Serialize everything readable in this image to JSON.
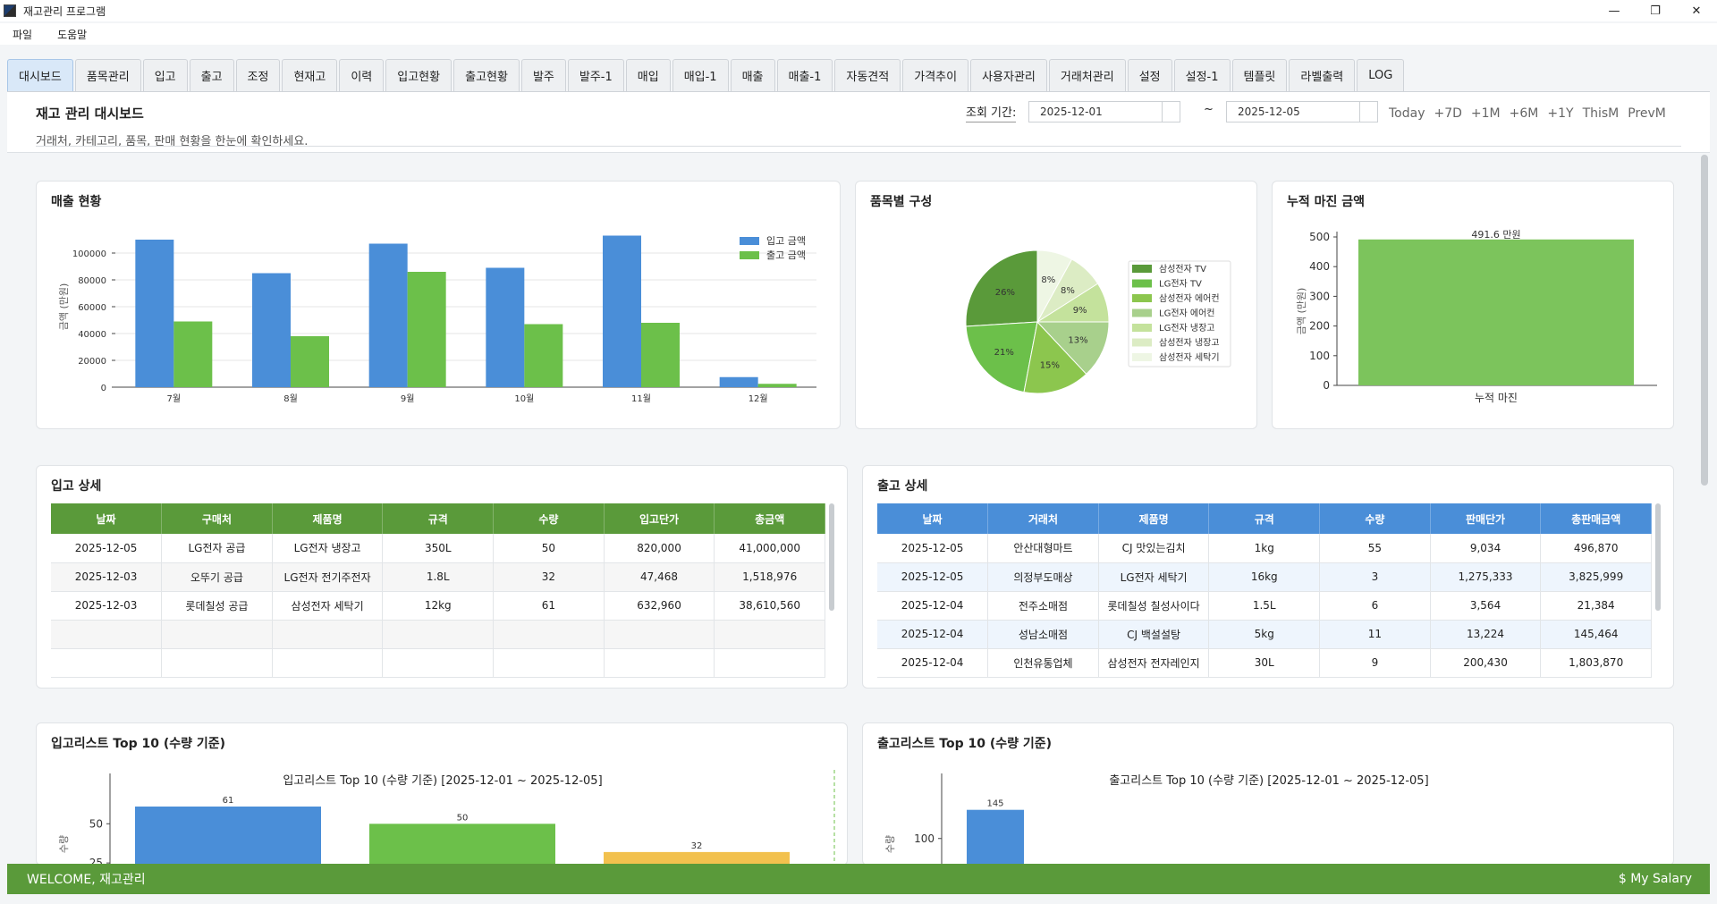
{
  "window": {
    "title": "재고관리 프로그램"
  },
  "menu": [
    "파일",
    "도움말"
  ],
  "tabs": [
    "대시보드",
    "품목관리",
    "입고",
    "출고",
    "조정",
    "현재고",
    "이력",
    "입고현황",
    "출고현황",
    "발주",
    "발주-1",
    "매입",
    "매입-1",
    "매출",
    "매출-1",
    "자동견적",
    "가격추이",
    "사용자관리",
    "거래처관리",
    "설정",
    "설정-1",
    "템플릿",
    "라벨출력",
    "LOG"
  ],
  "header": {
    "title": "재고 관리 대시보드",
    "subtitle": "거래처, 카테고리, 품목, 판매 현황을 한눈에 확인하세요.",
    "period_label": "조회 기간:",
    "date_from": "2025-12-01",
    "date_to": "2025-12-05",
    "tilde": "~",
    "quick": [
      "Today",
      "+7D",
      "+1M",
      "+6M",
      "+1Y",
      "ThisM",
      "PrevM"
    ]
  },
  "sales_card": {
    "title": "매출 현황",
    "chart_data": {
      "type": "bar",
      "categories": [
        "7월",
        "8월",
        "9월",
        "10월",
        "11월",
        "12월"
      ],
      "series": [
        {
          "name": "입고 금액",
          "values": [
            110000,
            85000,
            107000,
            89000,
            113000,
            7500
          ],
          "color": "#4a8ed8"
        },
        {
          "name": "출고 금액",
          "values": [
            49000,
            38000,
            86000,
            47000,
            48000,
            2500
          ],
          "color": "#6cc04a"
        }
      ],
      "ylabel": "금액 (만원)",
      "yticks": [
        0,
        20000,
        40000,
        60000,
        80000,
        100000
      ],
      "ylim": [
        0,
        120000
      ],
      "legend": "top-right",
      "grid": true
    }
  },
  "composition_card": {
    "title": "품목별 구성",
    "chart_data": {
      "type": "pie",
      "labels": [
        "삼성전자 TV",
        "LG전자 TV",
        "삼성전자 에어컨",
        "LG전자 에어컨",
        "LG전자 냉장고",
        "삼성전자 냉장고",
        "삼성전자 세탁기"
      ],
      "values": [
        26,
        21,
        15,
        13,
        9,
        8,
        8
      ],
      "value_labels": [
        "26%",
        "21%",
        "15%",
        "13%",
        "9%",
        "8%",
        "8%"
      ],
      "colors": [
        "#5a9a3a",
        "#6cc04a",
        "#8cc64e",
        "#a8d08c",
        "#c4e29c",
        "#dcecc4",
        "#eef6e4"
      ],
      "legend": "right"
    }
  },
  "margin_card": {
    "title": "누적 마진 금액",
    "chart_data": {
      "type": "bar",
      "categories": [
        "누적 마진"
      ],
      "values": [
        491.6
      ],
      "value_label": "491.6 만원",
      "ylabel": "금액 (만원)",
      "yticks": [
        0,
        100,
        200,
        300,
        400,
        500
      ],
      "ylim": [
        0,
        500
      ],
      "color": "#7cc45c"
    }
  },
  "inbound_table": {
    "title": "입고 상세",
    "columns": [
      "날짜",
      "구매처",
      "제품명",
      "규격",
      "수량",
      "입고단가",
      "총금액"
    ],
    "rows": [
      [
        "2025-12-05",
        "LG전자 공급",
        "LG전자 냉장고",
        "350L",
        "50",
        "820,000",
        "41,000,000"
      ],
      [
        "2025-12-03",
        "오뚜기 공급",
        "LG전자 전기주전자",
        "1.8L",
        "32",
        "47,468",
        "1,518,976"
      ],
      [
        "2025-12-03",
        "롯데칠성 공급",
        "삼성전자 세탁기",
        "12kg",
        "61",
        "632,960",
        "38,610,560"
      ],
      [
        "",
        "",
        "",
        "",
        "",
        "",
        ""
      ],
      [
        "",
        "",
        "",
        "",
        "",
        "",
        ""
      ]
    ]
  },
  "outbound_table": {
    "title": "출고 상세",
    "columns": [
      "날짜",
      "거래처",
      "제품명",
      "규격",
      "수량",
      "판매단가",
      "총판매금액"
    ],
    "rows": [
      [
        "2025-12-05",
        "안산대형마트",
        "CJ 맛있는김치",
        "1kg",
        "55",
        "9,034",
        "496,870"
      ],
      [
        "2025-12-05",
        "의정부도매상",
        "LG전자 세탁기",
        "16kg",
        "3",
        "1,275,333",
        "3,825,999"
      ],
      [
        "2025-12-04",
        "전주소매점",
        "롯데칠성 칠성사이다",
        "1.5L",
        "6",
        "3,564",
        "21,384"
      ],
      [
        "2025-12-04",
        "성남소매점",
        "CJ 백설설탕",
        "5kg",
        "11",
        "13,224",
        "145,464"
      ],
      [
        "2025-12-04",
        "인천유통업체",
        "삼성전자 전자레인지",
        "30L",
        "9",
        "200,430",
        "1,803,870"
      ]
    ]
  },
  "in_top10": {
    "title": "입고리스트 Top 10 (수량 기준)",
    "chart_data": {
      "type": "bar",
      "title": "입고리스트 Top 10 (수량 기준) [2025-12-01 ~ 2025-12-05]",
      "values": [
        61,
        50,
        32
      ],
      "value_labels": [
        "61",
        "50",
        "32"
      ],
      "colors": [
        "#4a8ed8",
        "#6cc04a",
        "#f2c14e"
      ],
      "ylabel": "수량",
      "yticks": [
        25,
        50
      ],
      "ylim": [
        0,
        65
      ]
    }
  },
  "out_top10": {
    "title": "출고리스트 Top 10 (수량 기준)",
    "chart_data": {
      "type": "bar",
      "title": "출고리스트 Top 10 (수량 기준) [2025-12-01 ~ 2025-12-05]",
      "values": [
        145
      ],
      "value_labels": [
        "145"
      ],
      "colors": [
        "#4a8ed8"
      ],
      "ylabel": "수량",
      "yticks": [
        100
      ],
      "ylim": [
        0,
        160
      ]
    }
  },
  "status": {
    "welcome": "WELCOME,  재고관리",
    "salary": "$ My Salary"
  }
}
